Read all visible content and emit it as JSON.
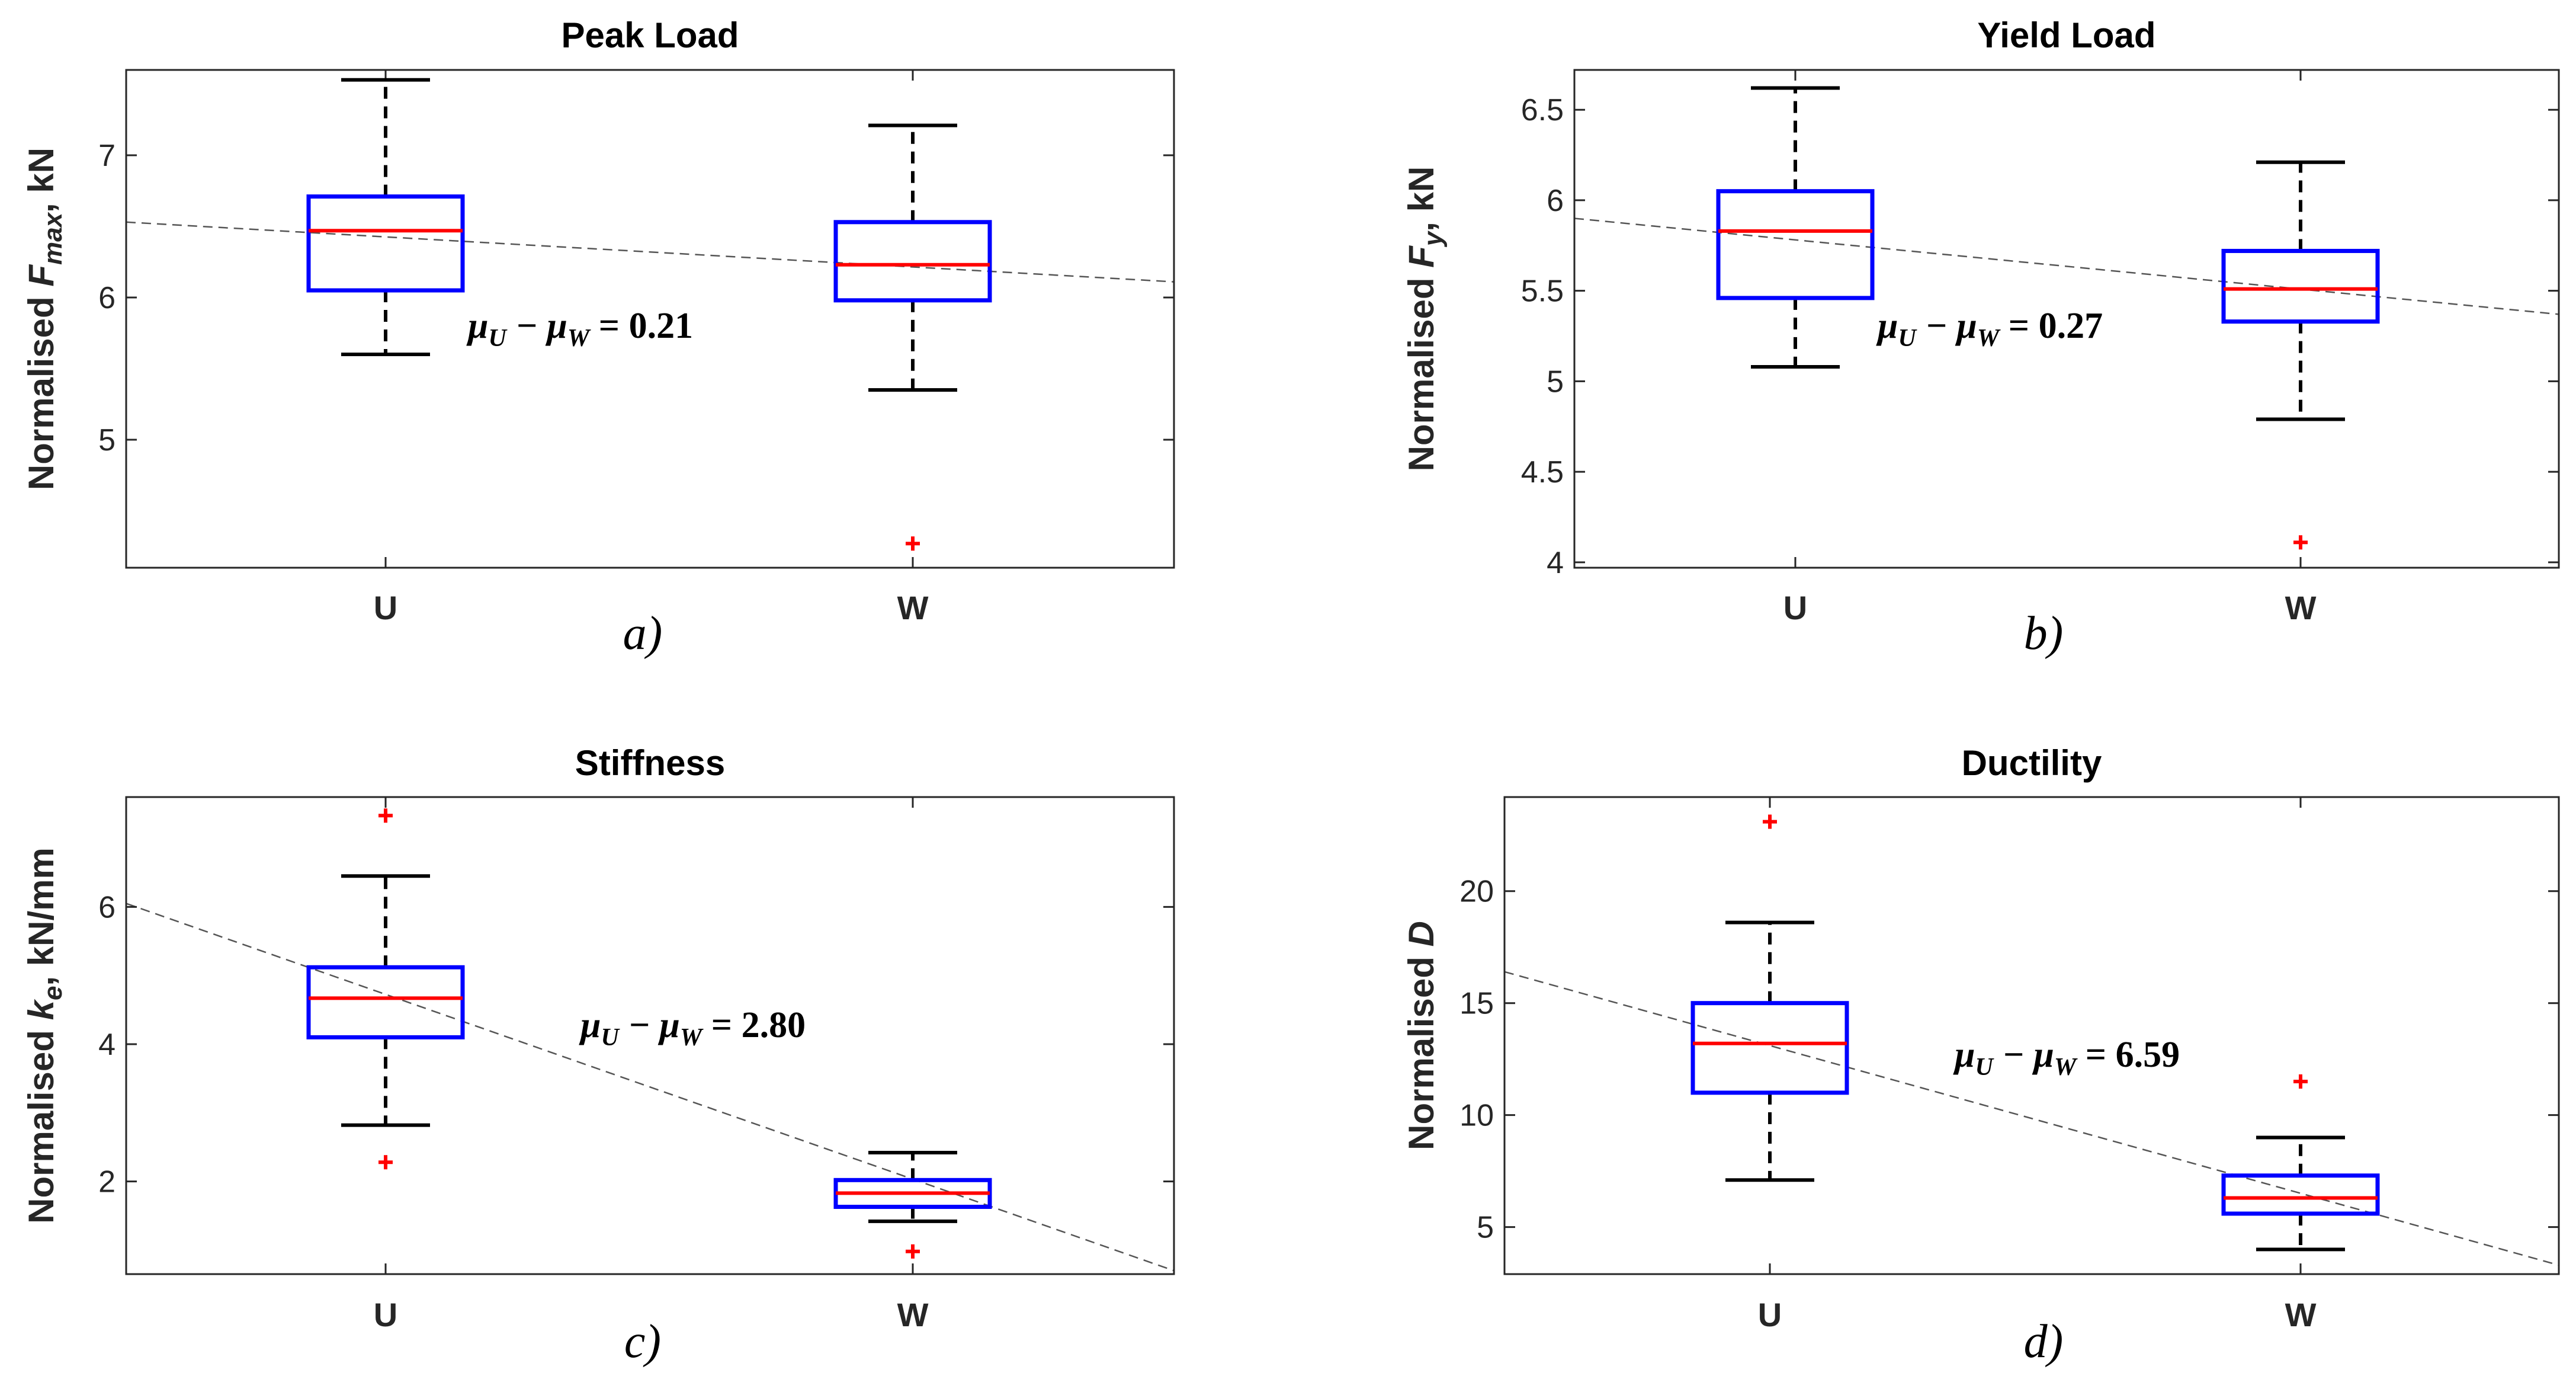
{
  "chart_data": [
    {
      "type": "box",
      "panel": "a)",
      "title": "Peak Load",
      "ylabel": {
        "prefix": "Normalised ",
        "symbol": "F",
        "sub": "max",
        "suffix": ", kN"
      },
      "categories": [
        "U",
        "W"
      ],
      "ylim": [
        4.1,
        7.6
      ],
      "yticks": [
        5,
        6,
        7
      ],
      "boxes": [
        {
          "category": "U",
          "q1": 6.05,
          "median": 6.47,
          "q3": 6.71,
          "whisker_low": 5.6,
          "whisker_high": 7.53,
          "outliers": []
        },
        {
          "category": "W",
          "q1": 5.98,
          "median": 6.23,
          "q3": 6.53,
          "whisker_low": 5.35,
          "whisker_high": 7.21,
          "outliers": [
            4.27
          ]
        }
      ],
      "trend": {
        "start": 6.53,
        "end": 6.11
      },
      "annotation": {
        "lhs": "μ",
        "sub1": "U",
        "minus": " − μ",
        "sub2": "W",
        "rhs": " = 0.21"
      }
    },
    {
      "type": "box",
      "panel": "b)",
      "title": "Yield Load",
      "ylabel": {
        "prefix": "Normalised ",
        "symbol": "F",
        "sub": "y",
        "suffix": ", kN"
      },
      "categories": [
        "U",
        "W"
      ],
      "ylim": [
        3.97,
        6.72
      ],
      "yticks": [
        4,
        4.5,
        5,
        5.5,
        6,
        6.5
      ],
      "boxes": [
        {
          "category": "U",
          "q1": 5.46,
          "median": 5.83,
          "q3": 6.05,
          "whisker_low": 5.08,
          "whisker_high": 6.62,
          "outliers": []
        },
        {
          "category": "W",
          "q1": 5.33,
          "median": 5.51,
          "q3": 5.72,
          "whisker_low": 4.79,
          "whisker_high": 6.21,
          "outliers": [
            4.11
          ]
        }
      ],
      "trend": {
        "start": 5.9,
        "end": 5.37
      },
      "annotation": {
        "lhs": "μ",
        "sub1": "U",
        "minus": " − μ",
        "sub2": "W",
        "rhs": " = 0.27"
      }
    },
    {
      "type": "box",
      "panel": "c)",
      "title": "Stiffness",
      "ylabel": {
        "prefix": "Normalised ",
        "symbol": "k",
        "sub": "e",
        "suffix": ", kN/mm"
      },
      "categories": [
        "U",
        "W"
      ],
      "ylim": [
        0.65,
        7.6
      ],
      "yticks": [
        2,
        4,
        6
      ],
      "boxes": [
        {
          "category": "U",
          "q1": 4.1,
          "median": 4.67,
          "q3": 5.12,
          "whisker_low": 2.82,
          "whisker_high": 6.45,
          "outliers": [
            7.33,
            2.28
          ]
        },
        {
          "category": "W",
          "q1": 1.63,
          "median": 1.83,
          "q3": 2.02,
          "whisker_low": 1.42,
          "whisker_high": 2.42,
          "outliers": [
            0.98
          ]
        }
      ],
      "trend": {
        "start": 6.05,
        "end": 0.7
      },
      "annotation": {
        "lhs": "μ",
        "sub1": "U",
        "minus": " − μ",
        "sub2": "W",
        "rhs": " = 2.80"
      }
    },
    {
      "type": "box",
      "panel": "d)",
      "title": "Ductility",
      "ylabel": {
        "prefix": "Normalised ",
        "symbol": "D",
        "sub": "",
        "suffix": ""
      },
      "categories": [
        "U",
        "W"
      ],
      "ylim": [
        2.9,
        24.2
      ],
      "yticks": [
        5,
        10,
        15,
        20
      ],
      "boxes": [
        {
          "category": "U",
          "q1": 11.0,
          "median": 13.2,
          "q3": 15.0,
          "whisker_low": 7.1,
          "whisker_high": 18.6,
          "outliers": [
            23.1
          ]
        },
        {
          "category": "W",
          "q1": 5.6,
          "median": 6.3,
          "q3": 7.3,
          "whisker_low": 4.0,
          "whisker_high": 9.0,
          "outliers": [
            11.5
          ]
        }
      ],
      "trend": {
        "start": 16.4,
        "end": 3.3
      },
      "annotation": {
        "lhs": "μ",
        "sub1": "U",
        "minus": " − μ",
        "sub2": "W",
        "rhs": " = 6.59"
      }
    }
  ]
}
